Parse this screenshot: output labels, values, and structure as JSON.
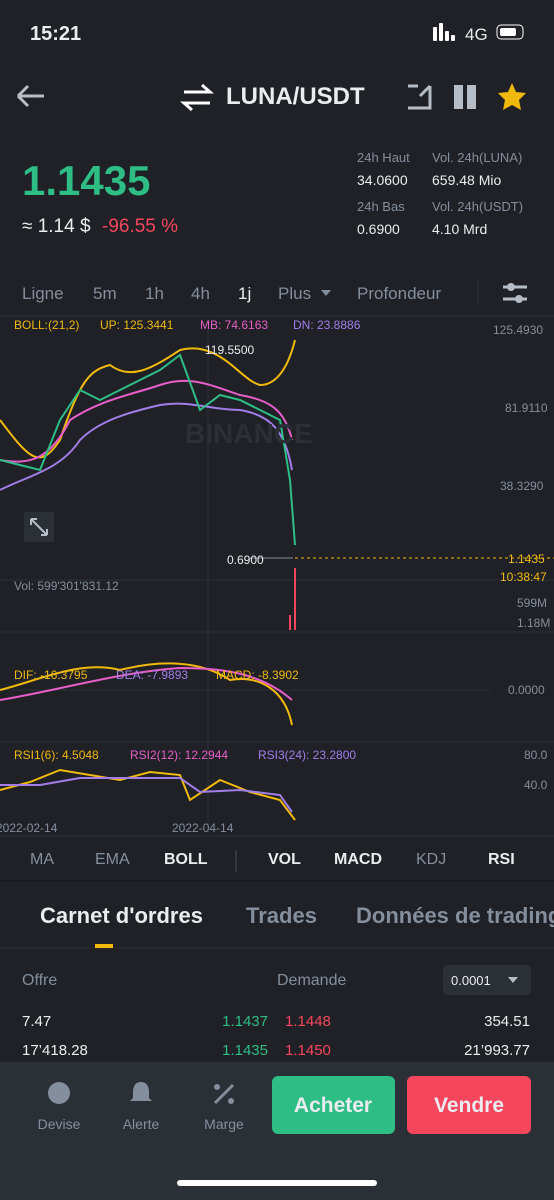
{
  "status": {
    "time": "15:21",
    "network": "4G"
  },
  "header": {
    "pair": "LUNA/USDT"
  },
  "price": {
    "last": "1.1435",
    "approx": "≈ 1.14 $",
    "change": "-96.55 %"
  },
  "stats": [
    {
      "label": "24h Haut",
      "value": "34.0600"
    },
    {
      "label": "Vol. 24h(LUNA)",
      "value": "659.48 Mio"
    },
    {
      "label": "24h Bas",
      "value": "0.6900"
    },
    {
      "label": "Vol. 24h(USDT)",
      "value": "4.10 Mrd"
    }
  ],
  "intervals": [
    "Ligne",
    "5m",
    "1h",
    "4h",
    "1j",
    "Plus",
    "Profondeur"
  ],
  "boll": [
    "BOLL:(21,2)",
    "UP: 125.3441",
    "MB: 74.6163",
    "DN: 23.8886"
  ],
  "price_axis": [
    "125.4930",
    "81.9110",
    "38.3290"
  ],
  "annotations": {
    "high": "119.5500",
    "low": "0.6900",
    "last": "1.1435",
    "countdown": "10:38:47",
    "watermark": "BINANCE"
  },
  "vol": {
    "label": "Vol: 599'301'831.12",
    "axis": [
      "599M",
      "1.18M"
    ]
  },
  "macd": {
    "labels": [
      "DIF: -16.3795",
      "DEA: -7.9893",
      "MACD: -8.3902"
    ],
    "axis": "0.0000"
  },
  "rsi": {
    "labels": [
      "RSI1(6): 4.5048",
      "RSI2(12): 12.2944",
      "RSI3(24): 23.2800"
    ],
    "axis": [
      "80.0",
      "40.0"
    ]
  },
  "dates": [
    "2022-02-14",
    "2022-04-14"
  ],
  "indicators": [
    "MA",
    "EMA",
    "BOLL",
    "VOL",
    "MACD",
    "KDJ",
    "RSI"
  ],
  "tabs": [
    "Carnet d'ordres",
    "Trades",
    "Données de trading"
  ],
  "orderbook": {
    "headers": [
      "Offre",
      "Demande"
    ],
    "precision": "0.0001",
    "rows": [
      [
        "7.47",
        "1.1437",
        "1.1448",
        "354.51"
      ],
      [
        "17’418.28",
        "1.1435",
        "1.1450",
        "21’993.77"
      ]
    ]
  },
  "bottom": {
    "nav": [
      "Devise",
      "Alerte",
      "Marge"
    ],
    "buy": "Acheter",
    "sell": "Vendre"
  }
}
